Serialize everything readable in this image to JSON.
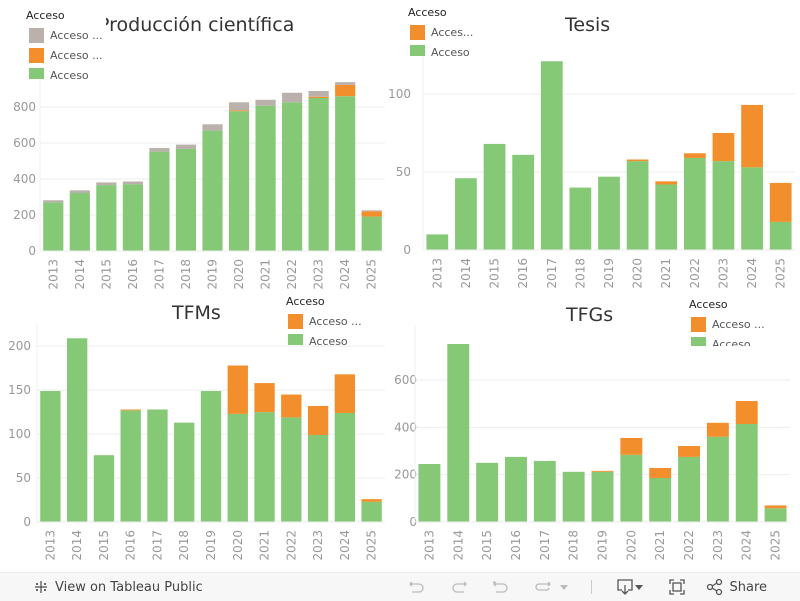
{
  "colors": {
    "green": "#85c977",
    "orange": "#f28e2b",
    "gray": "#bab0ac",
    "grid": "#eeeeee",
    "axis_text": "#999999"
  },
  "legend_title": "Acceso",
  "legend_labels": {
    "gray": "Acceso ...",
    "orange": "Acceso ...",
    "orange_short": "Acces...",
    "green": "Acceso"
  },
  "chart_data": [
    {
      "type": "bar",
      "stacked": true,
      "title": "Producción científica",
      "xlabel": "",
      "ylabel": "",
      "ylim": [
        0,
        950
      ],
      "yticks": [
        0,
        200,
        400,
        600,
        800
      ],
      "grid": true,
      "legend": "top-left",
      "categories": [
        "2013",
        "2014",
        "2015",
        "2016",
        "2017",
        "2018",
        "2019",
        "2020",
        "2021",
        "2022",
        "2023",
        "2024",
        "2025"
      ],
      "series": [
        {
          "name": "Acceso (green)",
          "color": "green",
          "values": [
            270,
            322,
            366,
            371,
            552,
            567,
            669,
            777,
            806,
            826,
            850,
            860,
            191
          ]
        },
        {
          "name": "Acceso ... (orange)",
          "color": "orange",
          "values": [
            0,
            0,
            0,
            0,
            0,
            0,
            0,
            5,
            0,
            0,
            7,
            63,
            30
          ]
        },
        {
          "name": "Acceso ... (gray)",
          "color": "gray",
          "values": [
            12,
            15,
            15,
            15,
            20,
            24,
            35,
            44,
            34,
            53,
            32,
            15,
            5
          ]
        }
      ]
    },
    {
      "type": "bar",
      "stacked": true,
      "title": "Tesis",
      "xlabel": "",
      "ylabel": "",
      "ylim": [
        0,
        125
      ],
      "yticks": [
        0,
        50,
        100
      ],
      "grid": true,
      "legend": "top-left",
      "categories": [
        "2013",
        "2014",
        "2015",
        "2016",
        "2017",
        "2018",
        "2019",
        "2020",
        "2021",
        "2022",
        "2023",
        "2024",
        "2025"
      ],
      "series": [
        {
          "name": "Acceso (green)",
          "color": "green",
          "values": [
            10,
            46,
            68,
            61,
            121,
            40,
            47,
            57,
            42,
            59,
            57,
            53,
            18
          ]
        },
        {
          "name": "Acceso ... (orange)",
          "color": "orange",
          "values": [
            0,
            0,
            0,
            0,
            0,
            0,
            0,
            1,
            2,
            3,
            18,
            40,
            25
          ]
        }
      ]
    },
    {
      "type": "bar",
      "stacked": true,
      "title": "TFMs",
      "xlabel": "",
      "ylabel": "",
      "ylim": [
        0,
        215
      ],
      "yticks": [
        0,
        50,
        100,
        150,
        200
      ],
      "grid": true,
      "legend": "top-right",
      "categories": [
        "2013",
        "2014",
        "2015",
        "2016",
        "2017",
        "2018",
        "2019",
        "2020",
        "2021",
        "2022",
        "2023",
        "2024",
        "2025"
      ],
      "series": [
        {
          "name": "Acceso (green)",
          "color": "green",
          "values": [
            149,
            209,
            76,
            127,
            128,
            113,
            149,
            123,
            125,
            119,
            99,
            124,
            23
          ]
        },
        {
          "name": "Acceso ... (orange)",
          "color": "orange",
          "values": [
            0,
            0,
            0,
            1,
            0,
            0,
            0,
            55,
            33,
            26,
            33,
            44,
            3
          ]
        }
      ]
    },
    {
      "type": "bar",
      "stacked": true,
      "title": "TFGs",
      "xlabel": "",
      "ylabel": "",
      "ylim": [
        0,
        790
      ],
      "yticks": [
        0,
        200,
        400,
        600
      ],
      "grid": true,
      "legend": "top-right",
      "categories": [
        "2013",
        "2014",
        "2015",
        "2016",
        "2017",
        "2018",
        "2019",
        "2020",
        "2021",
        "2022",
        "2023",
        "2024",
        "2025"
      ],
      "series": [
        {
          "name": "Acceso (green)",
          "color": "green",
          "values": [
            245,
            752,
            250,
            275,
            258,
            212,
            212,
            284,
            186,
            275,
            360,
            414,
            58
          ]
        },
        {
          "name": "Acceso ... (orange)",
          "color": "orange",
          "values": [
            0,
            0,
            0,
            0,
            0,
            0,
            4,
            71,
            42,
            46,
            59,
            97,
            12
          ]
        }
      ]
    }
  ],
  "toolbar": {
    "view_label": "View on Tableau Public",
    "share_label": "Share",
    "icons": [
      "tableau-logo-icon",
      "undo-icon",
      "redo-icon",
      "revert-icon",
      "refresh-icon",
      "dropdown-caret-icon",
      "download-icon",
      "fullscreen-icon",
      "share-icon"
    ]
  }
}
